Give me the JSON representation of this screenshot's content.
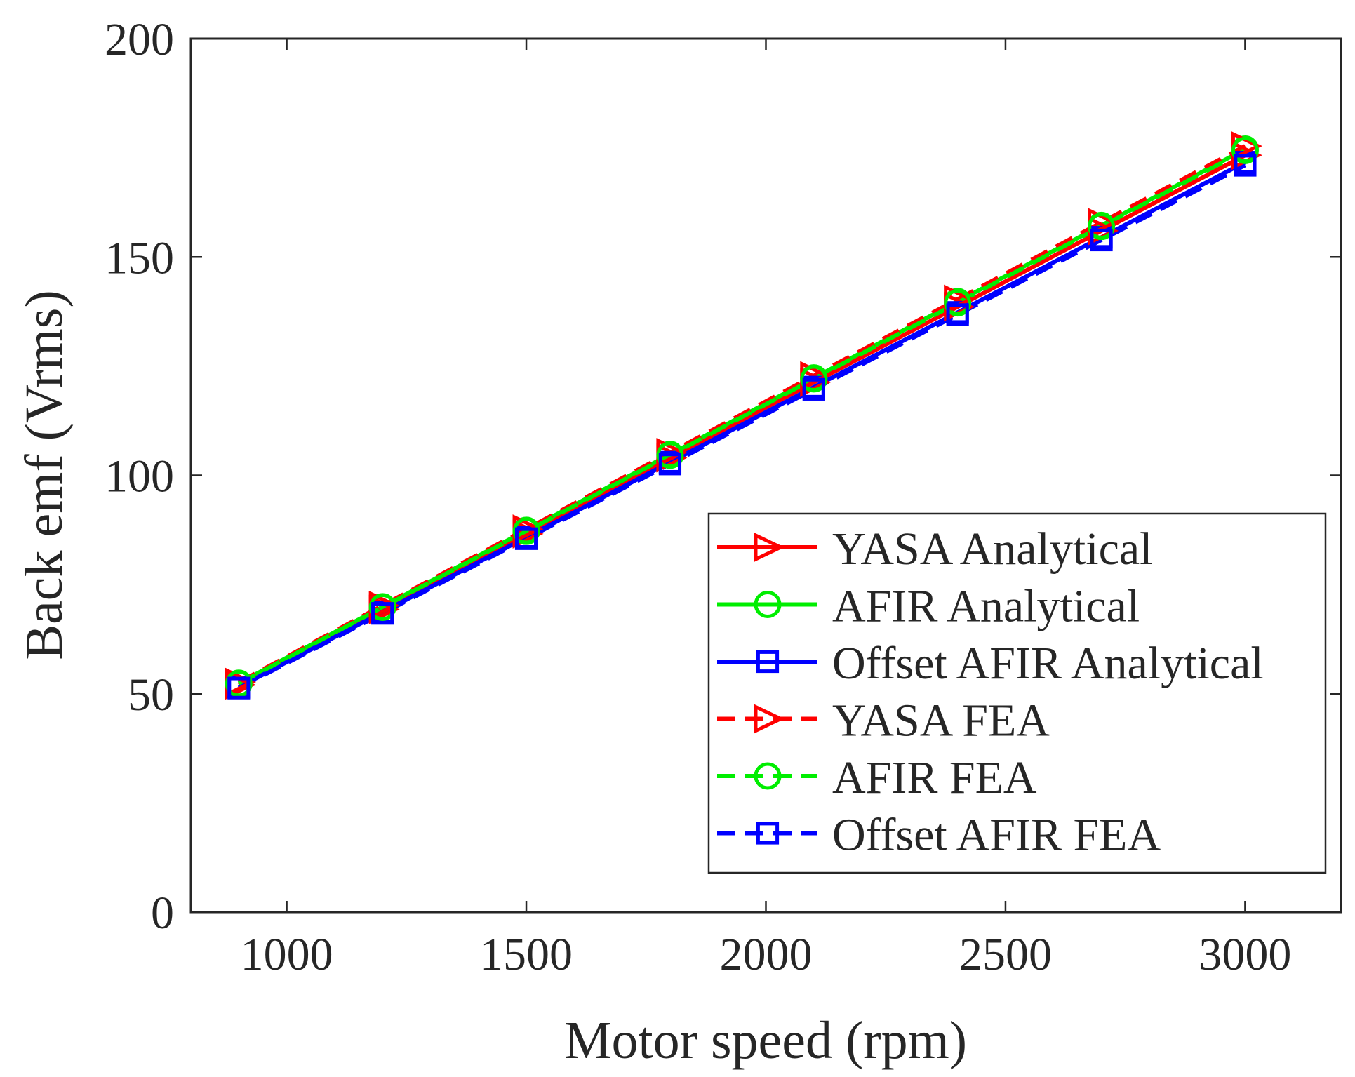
{
  "chart_data": {
    "type": "line",
    "title": "",
    "xlabel": "Motor speed (rpm)",
    "ylabel": "Back emf (Vrms)",
    "xlim": [
      800,
      3200
    ],
    "ylim": [
      0,
      200
    ],
    "xticks": [
      1000,
      1500,
      2000,
      2500,
      3000
    ],
    "yticks": [
      0,
      50,
      100,
      150,
      200
    ],
    "x": [
      900,
      1200,
      1500,
      1800,
      2100,
      2400,
      2700,
      3000
    ],
    "legend_position": "bottom-right",
    "grid": false,
    "series": [
      {
        "name": "YASA Analytical",
        "color": "#ff0000",
        "dash": "solid",
        "marker": "triangle-right",
        "values": [
          52.0,
          69.3,
          86.6,
          104.0,
          121.3,
          138.6,
          156.0,
          173.3
        ]
      },
      {
        "name": "AFIR Analytical",
        "color": "#00ee00",
        "dash": "solid",
        "marker": "circle",
        "values": [
          52.4,
          69.9,
          87.4,
          104.8,
          122.3,
          139.8,
          157.2,
          174.7
        ]
      },
      {
        "name": "Offset AFIR Analytical",
        "color": "#0000ff",
        "dash": "solid",
        "marker": "square",
        "values": [
          51.5,
          68.7,
          85.8,
          103.0,
          120.2,
          137.3,
          154.5,
          171.7
        ]
      },
      {
        "name": "YASA FEA",
        "color": "#ff0000",
        "dash": "dashed",
        "marker": "triangle-right",
        "values": [
          52.6,
          70.2,
          87.7,
          105.2,
          122.8,
          140.3,
          157.9,
          175.4
        ]
      },
      {
        "name": "AFIR FEA",
        "color": "#00ee00",
        "dash": "dashed",
        "marker": "circle",
        "values": [
          52.3,
          69.8,
          87.2,
          104.6,
          122.1,
          139.5,
          157.0,
          174.4
        ]
      },
      {
        "name": "Offset AFIR FEA",
        "color": "#0000ff",
        "dash": "dashed",
        "marker": "square",
        "values": [
          51.3,
          68.4,
          85.5,
          102.6,
          119.7,
          136.8,
          153.9,
          171.0
        ]
      }
    ]
  }
}
